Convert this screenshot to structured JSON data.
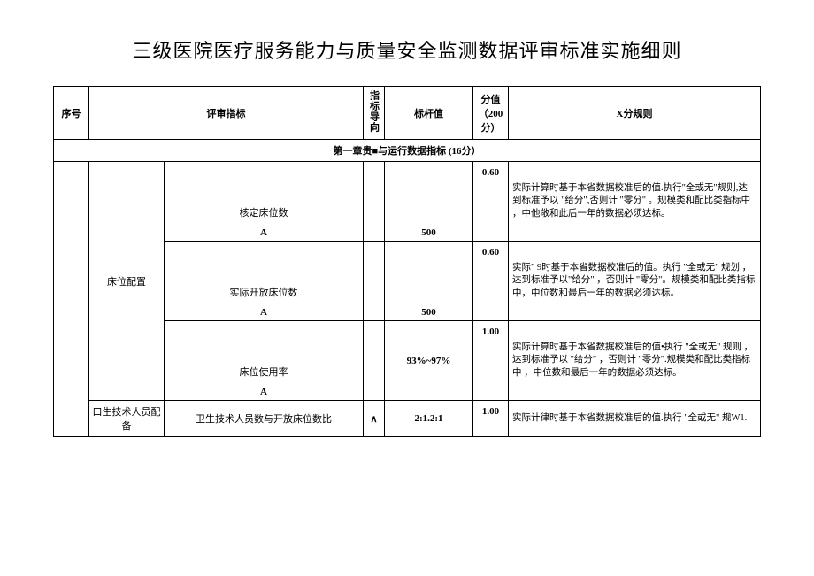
{
  "title": "三级医院医疗服务能力与质量安全监测数据评审标准实施细则",
  "headers": {
    "seq": "序号",
    "indicator": "评审指标",
    "direction": "指标导向",
    "target": "标杆值",
    "score": "分值（200分）",
    "rule": "X分规则"
  },
  "section": "第一章贵■与运行数据指标  (16分）",
  "cat1": "床位配置",
  "cat2": "口生技术人员配备",
  "row1": {
    "name": "核定床位数",
    "a": "A",
    "target": "500",
    "score": "0.60",
    "rule": "实际计算时基于本省数据校准后的值.执行\"全或无\"规则,达到标准予以 \"给分\",否则计\n    \"零分\" 。规模类和配比类指标中 ，中他敞和此后一年的数据必须达标。"
  },
  "row2": {
    "name": "实际开放床位数",
    "a": "A",
    "target": "500",
    "score": "0.60",
    "rule": "实际\" 9时基于本省数据校准后的值。执行 \"全或无\" 规划 ，达到标准予以\"给分\" ，否则计 \"零分\"。规模类和配比类指标中，中位数和最后一年的数据必须达标。"
  },
  "row3": {
    "name": "床位使用率",
    "a": "A",
    "target": "93%~97%",
    "score": "1.00",
    "rule": "实际计算时基于本省数据校准后的值•执行 \"全或无\" 规则 ，达到标准予以 \"给分\" ，否则计 \"零分\".规模类和配比类指标中 ，中位数和最后一年的数据必须达标。"
  },
  "row4": {
    "name": "卫生技术人员数与开放床位数比",
    "a": "∧",
    "target": "2:1.2:1",
    "score": "1.00",
    "rule": "实际计律时基于本省数据校准后的值.执行 \"全或无\" 规W1."
  }
}
